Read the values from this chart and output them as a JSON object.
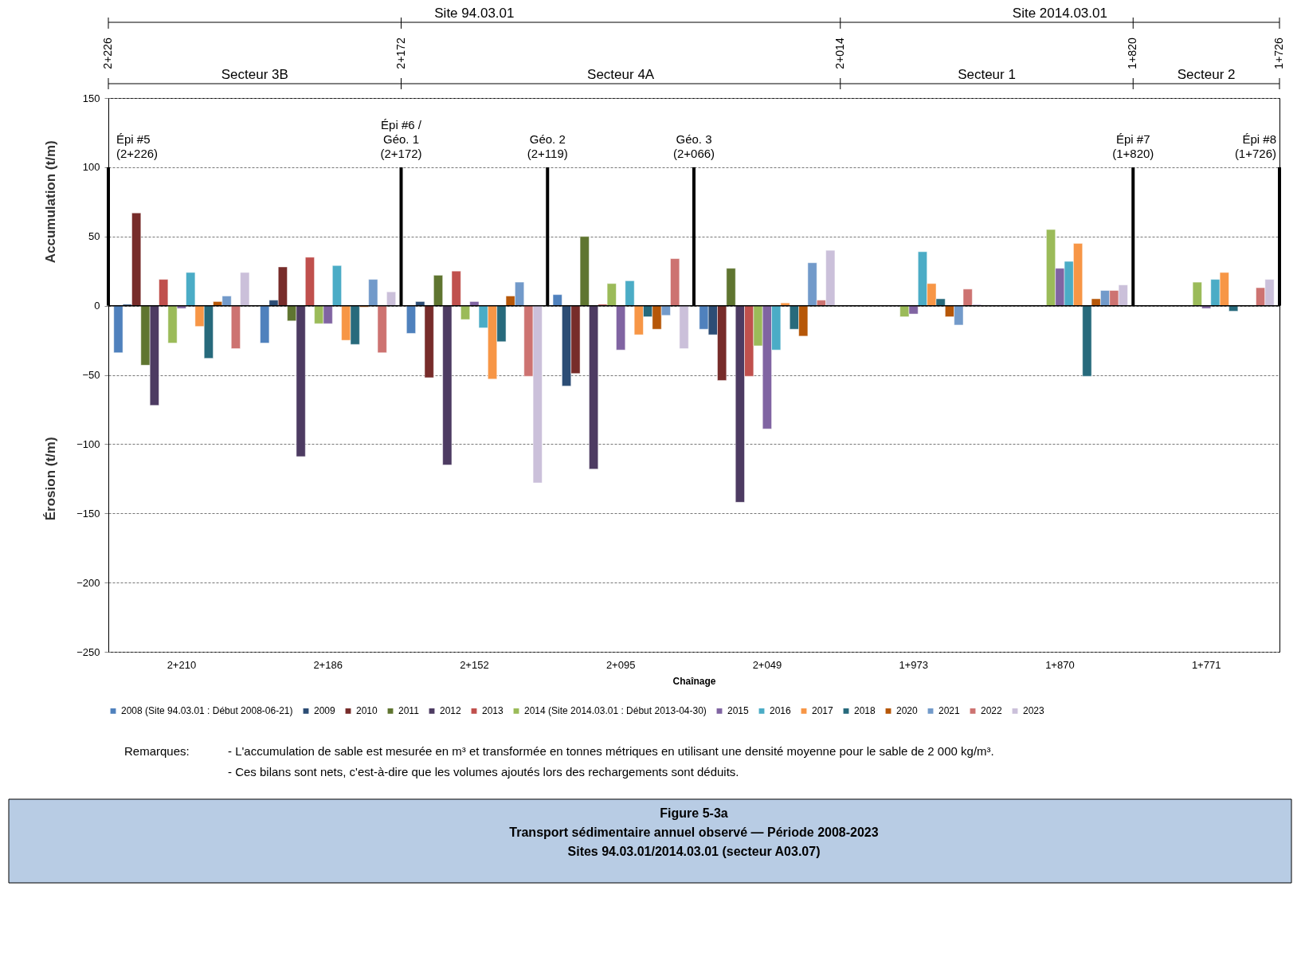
{
  "chart_data": {
    "type": "bar",
    "title": "Figure 5-3a",
    "subtitle": "Transport sédimentaire annuel observé — Période 2008-2023\nSites 94.03.01/2014.03.01  (secteur A03.07)",
    "xlabel": "Chaînage",
    "ylabel": "Accumulation (t/m)",
    "annotations": [
      "Érosion (t/m)",
      "Remarques:",
      "-  L'accumulation de sable est mesurée en m³ et transformée en tonnes métriques en utilisant une densité moyenne pour le sable de 2 000 kg/m³.",
      "-  Ces bilans sont nets, c'est-à-dire que les volumes ajoutés lors des rechargements sont déduits.",
      "Site 94.03.01",
      "Site 2014.03.01",
      "Secteur 3B",
      "Secteur 4A",
      "Secteur 1",
      "Secteur 2",
      "2+226",
      "2+172",
      "2+014",
      "1+820",
      "1+726",
      "Épi #5\n(2+226)",
      "Épi #6 /\nGéo. 1\n(2+172)",
      "Géo. 2\n(2+119)",
      "Géo. 3\n(2+066)",
      "Épi #7\n(1+820)",
      "Épi #8\n(1+726)"
    ],
    "categories": [
      "2+210",
      "2+186",
      "2+152",
      "2+095",
      "2+049",
      "1+973",
      "1+870",
      "1+771"
    ],
    "series": [
      {
        "name": "2008 (Site 94.03.01 : Début 2008-06-21)",
        "color": "#4f81bd",
        "values": [
          -34,
          -27,
          -20,
          8,
          -17,
          null,
          null,
          null
        ]
      },
      {
        "name": "2009",
        "color": "#2c4d75",
        "values": [
          1,
          4,
          3,
          -58,
          -21,
          null,
          null,
          null
        ]
      },
      {
        "name": "2010",
        "color": "#772c2a",
        "values": [
          67,
          28,
          -52,
          -49,
          -54,
          null,
          null,
          null
        ]
      },
      {
        "name": "2011",
        "color": "#5f7530",
        "values": [
          -43,
          -11,
          22,
          50,
          27,
          null,
          null,
          null
        ]
      },
      {
        "name": "2012",
        "color": "#4d3b62",
        "values": [
          -72,
          -109,
          -115,
          -118,
          -142,
          null,
          null,
          null
        ]
      },
      {
        "name": "2013",
        "color": "#c0504d",
        "values": [
          19,
          35,
          25,
          1,
          -51,
          null,
          null,
          null
        ]
      },
      {
        "name": "2014 (Site 2014.03.01 : Début 2013-04-30)",
        "color": "#9bbb59",
        "values": [
          -27,
          -13,
          -10,
          16,
          -29,
          -8,
          55,
          17
        ]
      },
      {
        "name": "2015",
        "color": "#8064a2",
        "values": [
          -2,
          -13,
          3,
          -32,
          -89,
          -6,
          27,
          -2
        ]
      },
      {
        "name": "2016",
        "color": "#4bacc6",
        "values": [
          24,
          29,
          -16,
          18,
          -32,
          39,
          32,
          19
        ]
      },
      {
        "name": "2017",
        "color": "#f79646",
        "values": [
          -15,
          -25,
          -53,
          -21,
          2,
          16,
          45,
          24
        ]
      },
      {
        "name": "2018",
        "color": "#276a7c",
        "values": [
          -38,
          -28,
          -26,
          -8,
          -17,
          5,
          -51,
          -4
        ]
      },
      {
        "name": "2020",
        "color": "#b65708",
        "values": [
          3,
          -1,
          7,
          -17,
          -22,
          -8,
          5,
          null
        ]
      },
      {
        "name": "2021",
        "color": "#729aca",
        "values": [
          7,
          19,
          17,
          -7,
          31,
          -14,
          11,
          null
        ]
      },
      {
        "name": "2022",
        "color": "#cd7371",
        "values": [
          -31,
          -34,
          -51,
          34,
          4,
          12,
          11,
          13
        ]
      },
      {
        "name": "2023",
        "color": "#cbc0da",
        "values": [
          24,
          10,
          -128,
          -31,
          40,
          1,
          15,
          19
        ]
      }
    ],
    "ylim": [
      -250,
      150
    ],
    "yticks": [
      -250,
      -200,
      -150,
      -100,
      -50,
      0,
      50,
      100,
      150
    ],
    "grid": "y",
    "legend": "bottom"
  }
}
